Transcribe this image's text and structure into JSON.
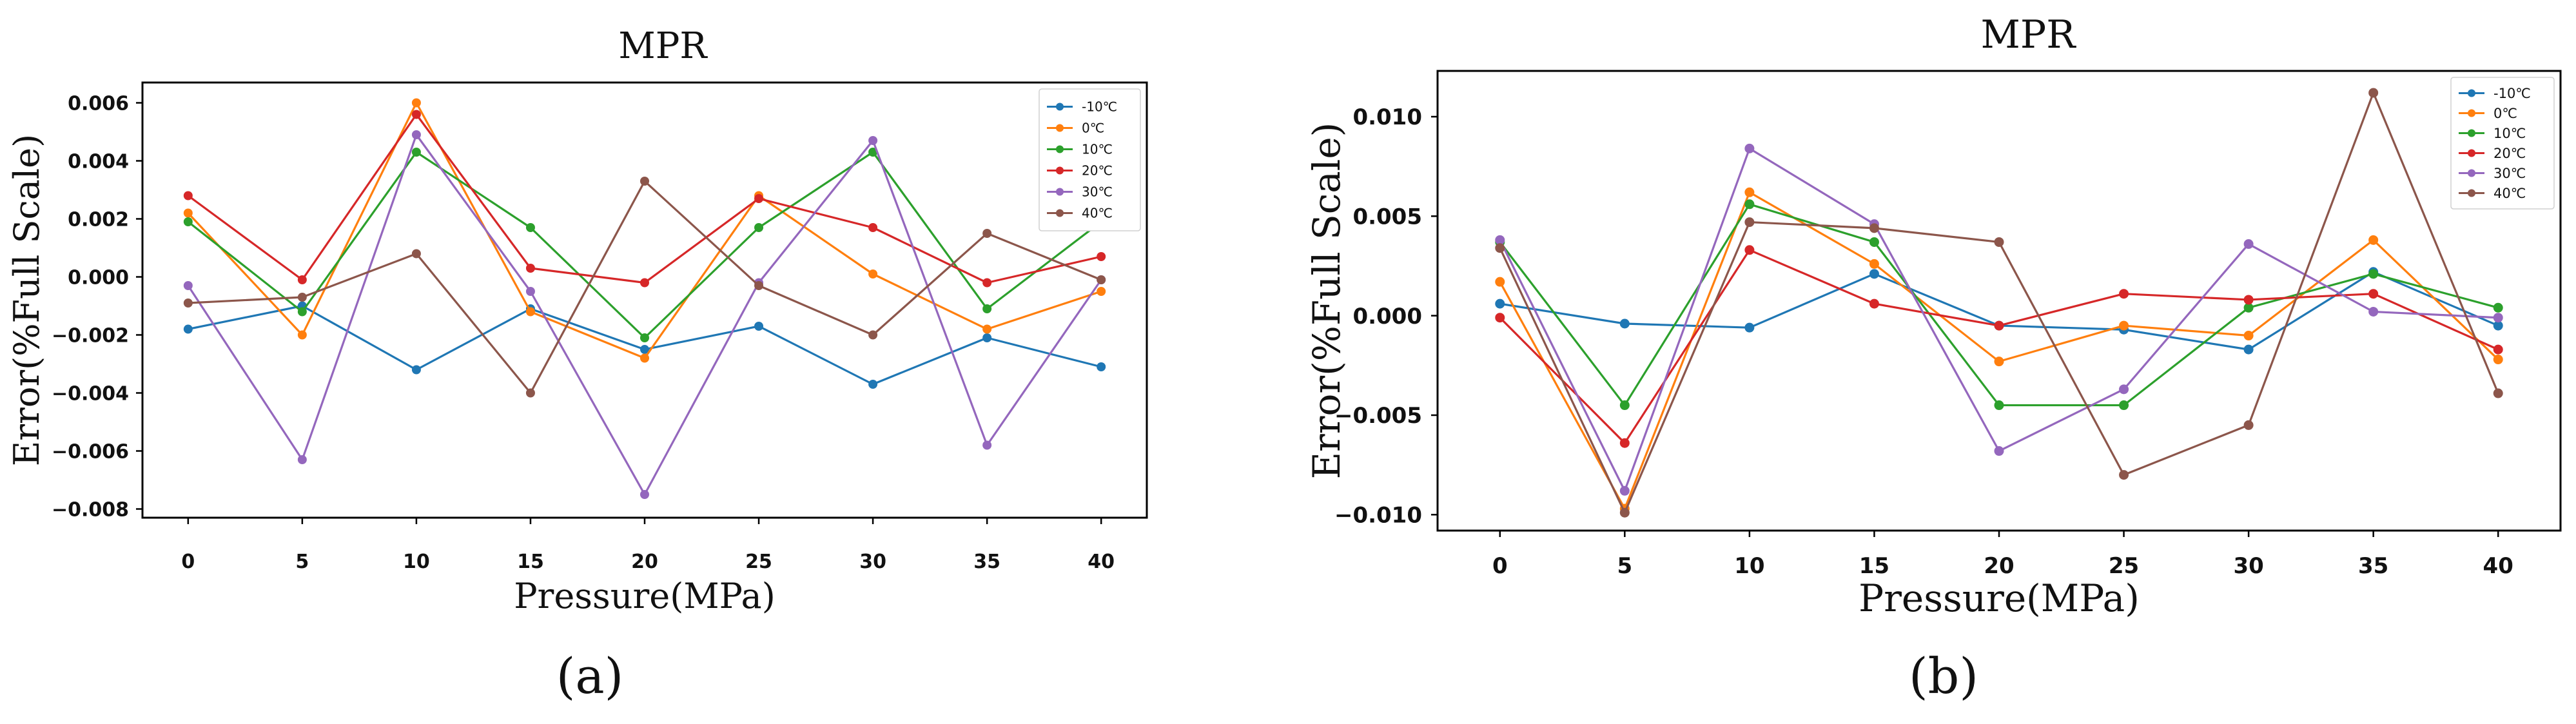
{
  "chart_data": [
    {
      "type": "line",
      "panel_label": "(a)",
      "title": "MPR",
      "xlabel": "Pressure(MPa)",
      "ylabel": "Error(%Full Scale)",
      "x": [
        0,
        5,
        10,
        15,
        20,
        25,
        30,
        35,
        40
      ],
      "x_ticks": [
        "0",
        "5",
        "10",
        "15",
        "20",
        "25",
        "30",
        "35",
        "40"
      ],
      "xlim": [
        -2,
        42
      ],
      "ylim": [
        -0.0083,
        0.0067
      ],
      "y_ticks": [
        {
          "value": -0.008,
          "label": "−0.008"
        },
        {
          "value": -0.006,
          "label": "−0.006"
        },
        {
          "value": -0.004,
          "label": "−0.004"
        },
        {
          "value": -0.002,
          "label": "−0.002"
        },
        {
          "value": 0.0,
          "label": "0.000"
        },
        {
          "value": 0.002,
          "label": "0.002"
        },
        {
          "value": 0.004,
          "label": "0.004"
        },
        {
          "value": 0.006,
          "label": "0.006"
        }
      ],
      "grid": false,
      "legend_position": "top-right",
      "series": [
        {
          "name": "-10℃",
          "color": "#1f77b4",
          "values": [
            -0.0018,
            -0.001,
            -0.0032,
            -0.0011,
            -0.0025,
            -0.0017,
            -0.0037,
            -0.0021,
            -0.0031
          ]
        },
        {
          "name": "0℃",
          "color": "#ff7f0e",
          "values": [
            0.0022,
            -0.002,
            0.006,
            -0.0012,
            -0.0028,
            0.0028,
            0.0001,
            -0.0018,
            -0.0005
          ]
        },
        {
          "name": "10℃",
          "color": "#2ca02c",
          "values": [
            0.0019,
            -0.0012,
            0.0043,
            0.0017,
            -0.0021,
            0.0017,
            0.0043,
            -0.0011,
            0.0019
          ]
        },
        {
          "name": "20℃",
          "color": "#d62728",
          "values": [
            0.0028,
            -0.0001,
            0.0056,
            0.0003,
            -0.0002,
            0.0027,
            0.0017,
            -0.0002,
            0.0007
          ]
        },
        {
          "name": "30℃",
          "color": "#9467bd",
          "values": [
            -0.0003,
            -0.0063,
            0.0049,
            -0.0005,
            -0.0075,
            -0.0002,
            0.0047,
            -0.0058,
            -0.0001
          ]
        },
        {
          "name": "40℃",
          "color": "#8c564b",
          "values": [
            -0.0009,
            -0.0007,
            0.0008,
            -0.004,
            0.0033,
            -0.0003,
            -0.002,
            0.0015,
            -0.0001
          ]
        }
      ]
    },
    {
      "type": "line",
      "panel_label": "(b)",
      "title": "MPR",
      "xlabel": "Pressure(MPa)",
      "ylabel": "Error(%Full Scale)",
      "x": [
        0,
        5,
        10,
        15,
        20,
        25,
        30,
        35,
        40
      ],
      "x_ticks": [
        "0",
        "5",
        "10",
        "15",
        "20",
        "25",
        "30",
        "35",
        "40"
      ],
      "xlim": [
        -2.5,
        42.5
      ],
      "ylim": [
        -0.0108,
        0.0123
      ],
      "y_ticks": [
        {
          "value": -0.01,
          "label": "−0.010"
        },
        {
          "value": -0.005,
          "label": "−0.005"
        },
        {
          "value": 0.0,
          "label": "0.000"
        },
        {
          "value": 0.005,
          "label": "0.005"
        },
        {
          "value": 0.01,
          "label": "0.010"
        }
      ],
      "grid": false,
      "legend_position": "top-right",
      "series": [
        {
          "name": "-10℃",
          "color": "#1f77b4",
          "values": [
            0.0006,
            -0.0004,
            -0.0006,
            0.0021,
            -0.0005,
            -0.0007,
            -0.0017,
            0.0022,
            -0.0005
          ]
        },
        {
          "name": "0℃",
          "color": "#ff7f0e",
          "values": [
            0.0017,
            -0.0097,
            0.0062,
            0.0026,
            -0.0023,
            -0.0005,
            -0.001,
            0.0038,
            -0.0022
          ]
        },
        {
          "name": "10℃",
          "color": "#2ca02c",
          "values": [
            0.0037,
            -0.0045,
            0.0056,
            0.0037,
            -0.0045,
            -0.0045,
            0.0004,
            0.0021,
            0.0004
          ]
        },
        {
          "name": "20℃",
          "color": "#d62728",
          "values": [
            -0.0001,
            -0.0064,
            0.0033,
            0.0006,
            -0.0005,
            0.0011,
            0.0008,
            0.0011,
            -0.0017
          ]
        },
        {
          "name": "30℃",
          "color": "#9467bd",
          "values": [
            0.0038,
            -0.0088,
            0.0084,
            0.0046,
            -0.0068,
            -0.0037,
            0.0036,
            0.0002,
            -0.0001
          ]
        },
        {
          "name": "40℃",
          "color": "#8c564b",
          "values": [
            0.0034,
            -0.0099,
            0.0047,
            0.0044,
            0.0037,
            -0.008,
            -0.0055,
            0.0112,
            -0.0039
          ]
        }
      ]
    }
  ]
}
